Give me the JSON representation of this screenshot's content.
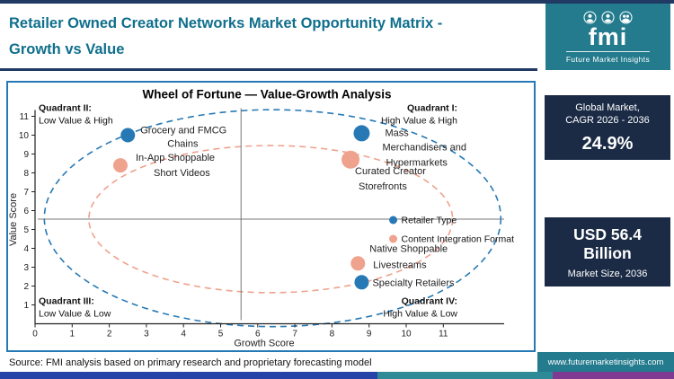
{
  "header": {
    "title_line1": "Retailer Owned Creator Networks Market Opportunity Matrix -",
    "title_line2": "Growth vs Value"
  },
  "logo": {
    "brand": "fmi",
    "tagline": "Future Market Insights"
  },
  "stats": {
    "cagr": {
      "label_line1": "Global Market,",
      "label_line2": "CAGR 2026 - 2036",
      "value": "24.9%"
    },
    "market_size": {
      "value_line1": "USD 56.4",
      "value_line2": "Billion",
      "label": "Market Size, 2036"
    }
  },
  "footer": {
    "source": "Source: FMI analysis based on primary research and proprietary forecasting model",
    "website": "www.futuremarketinsights.com"
  },
  "colors": {
    "heading": "#0f6f8c",
    "teal": "#237b8d",
    "navy": "#1b2b45",
    "rule": "#203a64",
    "blue_series": "#2779b5",
    "salmon_series": "#efa28d",
    "strip_blue": "#2644a7",
    "strip_teal": "#2e8a96",
    "strip_purple": "#803a92"
  },
  "chart_data": {
    "type": "scatter",
    "title": "Wheel of Fortune — Value-Growth Analysis",
    "xlabel": "Growth Score",
    "ylabel": "Value Score",
    "xlim": [
      0,
      11
    ],
    "ylim": [
      0,
      11
    ],
    "xticks": [
      0,
      1,
      2,
      3,
      4,
      5,
      6,
      7,
      8,
      9,
      10,
      11
    ],
    "yticks": [
      1,
      2,
      3,
      4,
      5,
      6,
      7,
      8,
      9,
      10,
      11
    ],
    "grid": false,
    "crosshair": {
      "x": 5.55,
      "y": 5.55
    },
    "quadrants": [
      {
        "title": "Quadrant II:",
        "subtitle": "Low Value & High",
        "corner": "top-left"
      },
      {
        "title": "Quadrant I:",
        "subtitle": "High Value & High",
        "corner": "top-right"
      },
      {
        "title": "Quadrant III:",
        "subtitle": "Low Value & Low",
        "corner": "bottom-left"
      },
      {
        "title": "Quadrant IV:",
        "subtitle": "High Value & Low",
        "corner": "bottom-right"
      }
    ],
    "ellipses": [
      {
        "cx": 6.4,
        "cy": 5.6,
        "rx": 6.15,
        "ry": 5.75,
        "color": "#2779b5"
      },
      {
        "cx": 6.35,
        "cy": 5.55,
        "rx": 4.9,
        "ry": 3.9,
        "color": "#efa28d"
      }
    ],
    "series": [
      {
        "name": "Retailer Type",
        "color": "#2779b5",
        "points": [
          {
            "x": 2.5,
            "y": 10.0,
            "r": 8,
            "label": "Grocery and FMCG Chains",
            "label_lines": [
              {
                "t": "Grocery and FMCG",
                "dx": 14,
                "dy": -2
              },
              {
                "t": "Chains",
                "dx": 44,
                "dy": 13
              }
            ]
          },
          {
            "x": 8.8,
            "y": 10.1,
            "r": 9,
            "label": "Mass Merchandisers and Hypermarkets",
            "label_lines": [
              {
                "t": "Mass",
                "dx": 26,
                "dy": 3
              },
              {
                "t": "Merchandisers and",
                "dx": 23,
                "dy": 19
              },
              {
                "t": "Hypermarkets",
                "dx": 27,
                "dy": 36
              }
            ]
          },
          {
            "x": 8.8,
            "y": 2.2,
            "r": 8,
            "label": "Specialty Retailers",
            "label_lines": [
              {
                "t": "Specialty Retailers",
                "dx": 12,
                "dy": 4
              }
            ]
          }
        ]
      },
      {
        "name": "Content Integration Format",
        "color": "#efa28d",
        "points": [
          {
            "x": 2.3,
            "y": 8.4,
            "r": 8,
            "label": "In-App Shoppable Short Videos",
            "label_lines": [
              {
                "t": "In-App Shoppable",
                "dx": 17,
                "dy": -5
              },
              {
                "t": "Short Videos",
                "dx": 37,
                "dy": 12
              }
            ]
          },
          {
            "x": 8.5,
            "y": 8.7,
            "r": 10,
            "label": "Curated Creator Storefronts",
            "label_lines": [
              {
                "t": "Curated Creator",
                "dx": 5,
                "dy": 16
              },
              {
                "t": "Storefronts",
                "dx": 9,
                "dy": 33
              }
            ]
          },
          {
            "x": 8.7,
            "y": 3.2,
            "r": 8,
            "label": "Native Shoppable Livestreams",
            "label_lines": [
              {
                "t": "Native Shoppable",
                "dx": 13,
                "dy": -13
              },
              {
                "t": "Livestreams",
                "dx": 17,
                "dy": 5
              }
            ]
          }
        ]
      }
    ],
    "legend": {
      "x": 9.65,
      "items": [
        {
          "label": "Retailer Type",
          "color": "#2779b5",
          "y": 5.5
        },
        {
          "label": "Content Integration Format",
          "color": "#efa28d",
          "y": 4.5
        }
      ]
    }
  }
}
